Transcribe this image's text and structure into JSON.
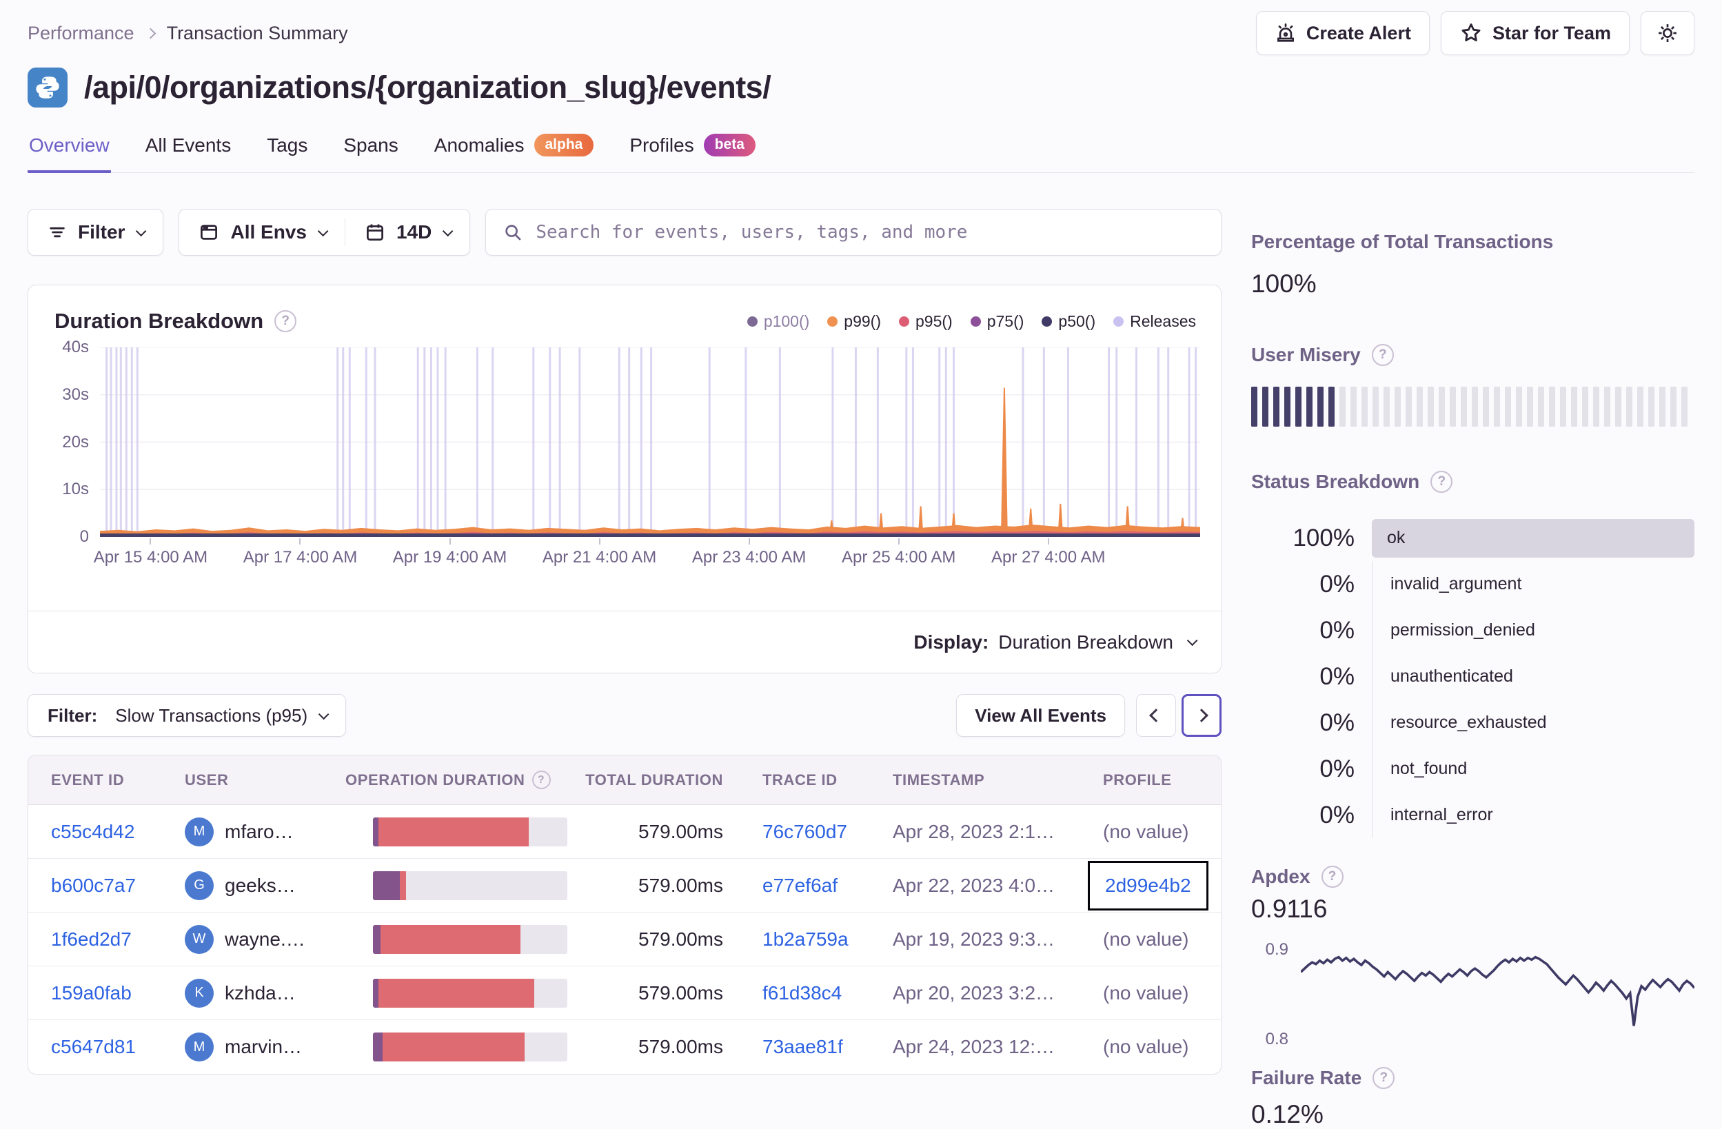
{
  "breadcrumb": {
    "section": "Performance",
    "page": "Transaction Summary"
  },
  "header": {
    "title": "/api/0/organizations/{organization_slug}/events/",
    "platform": "python",
    "actions": {
      "create_alert": "Create Alert",
      "star_for_team": "Star for Team"
    }
  },
  "tabs": [
    {
      "label": "Overview",
      "active": true
    },
    {
      "label": "All Events"
    },
    {
      "label": "Tags"
    },
    {
      "label": "Spans"
    },
    {
      "label": "Anomalies",
      "badge": "alpha"
    },
    {
      "label": "Profiles",
      "badge": "beta"
    }
  ],
  "filters": {
    "filter_button": "Filter",
    "env_button": "All Envs",
    "date_button": "14D",
    "search_placeholder": "Search for events, users, tags, and more"
  },
  "duration_panel": {
    "title": "Duration Breakdown",
    "legend": [
      {
        "label": "p100()",
        "color": "#7C6A94",
        "muted": true
      },
      {
        "label": "p99()",
        "color": "#EF9150"
      },
      {
        "label": "p95()",
        "color": "#DD5E74"
      },
      {
        "label": "p75()",
        "color": "#8D4F99"
      },
      {
        "label": "p50()",
        "color": "#3F3A66"
      },
      {
        "label": "Releases",
        "color": "#C9C1EF"
      }
    ],
    "display_label": "Display:",
    "display_value": "Duration Breakdown",
    "chart_data": {
      "type": "area",
      "unit": "seconds",
      "ylim": [
        0,
        40
      ],
      "y_ticks": [
        {
          "label": "40s",
          "sec": 40
        },
        {
          "label": "30s",
          "sec": 30
        },
        {
          "label": "20s",
          "sec": 20
        },
        {
          "label": "10s",
          "sec": 10
        },
        {
          "label": "0",
          "sec": 0
        }
      ],
      "x_ticks": [
        {
          "label": "Apr 15 4:00 AM",
          "pct": 4.6
        },
        {
          "label": "Apr 17 4:00 AM",
          "pct": 18.2
        },
        {
          "label": "Apr 19 4:00 AM",
          "pct": 31.8
        },
        {
          "label": "Apr 21 4:00 AM",
          "pct": 45.4
        },
        {
          "label": "Apr 23 4:00 AM",
          "pct": 59.0
        },
        {
          "label": "Apr 25 4:00 AM",
          "pct": 72.6
        },
        {
          "label": "Apr 27 4:00 AM",
          "pct": 86.2
        }
      ],
      "release_lines_pct": [
        0.6,
        1.0,
        1.5,
        1.9,
        2.4,
        2.9,
        3.4,
        21.6,
        22.1,
        22.7,
        24.2,
        25.0,
        28.9,
        29.5,
        30.1,
        30.7,
        31.4,
        34.3,
        35.7,
        39.4,
        40.9,
        41.8,
        43.6,
        47.2,
        48.1,
        49.2,
        50.1,
        55.4,
        58.7,
        61.8,
        66.6,
        68.7,
        70.7,
        73.3,
        73.9,
        76.3,
        76.9,
        77.6,
        83.9,
        85.8,
        88.0,
        91.7,
        92.4,
        94.2,
        96.2,
        97.1,
        99.0,
        99.6
      ],
      "p99_spikes_sec": [
        {
          "pct": 66.5,
          "sec": 3.5
        },
        {
          "pct": 71.0,
          "sec": 5.0
        },
        {
          "pct": 74.6,
          "sec": 6.5
        },
        {
          "pct": 77.6,
          "sec": 5.0
        },
        {
          "pct": 82.2,
          "sec": 31.5
        },
        {
          "pct": 84.6,
          "sec": 6.0
        },
        {
          "pct": 87.3,
          "sec": 7.0
        },
        {
          "pct": 93.4,
          "sec": 6.5
        },
        {
          "pct": 98.4,
          "sec": 4.0
        }
      ],
      "p99_baseline_sec": [
        1.3,
        1.5,
        1.2,
        1.6,
        1.4,
        1.8,
        1.3,
        1.5,
        2.0,
        1.4,
        1.6,
        1.3,
        1.7,
        1.5,
        1.9,
        1.6,
        1.4,
        1.8,
        1.5,
        1.7,
        2.1,
        1.6,
        1.8,
        1.5,
        1.9,
        1.7,
        1.5,
        2.0,
        1.6,
        1.8,
        1.4,
        1.7,
        1.9,
        1.6,
        2.0,
        1.7,
        2.1,
        1.8,
        1.6,
        2.2,
        1.9,
        2.4,
        2.0,
        2.3,
        1.9,
        2.2,
        2.5,
        2.1,
        2.4,
        2.2,
        2.6,
        2.3,
        2.0,
        2.4,
        2.1,
        2.5,
        2.2,
        2.0,
        2.3,
        2.1
      ]
    }
  },
  "events_panel": {
    "filter_label": "Filter:",
    "filter_value": "Slow Transactions (p95)",
    "view_all": "View All Events",
    "columns": {
      "event_id": "EVENT ID",
      "user": "USER",
      "op_duration": "OPERATION DURATION",
      "total": "TOTAL DURATION",
      "trace": "TRACE ID",
      "timestamp": "TIMESTAMP",
      "profile": "PROFILE"
    },
    "rows": [
      {
        "event_id": "c55c4d42",
        "avatar": "M",
        "user": "mfaro…",
        "op": {
          "purple": 3,
          "red": 77,
          "track": 20
        },
        "total": "579.00ms",
        "trace": "76c760d7",
        "timestamp": "Apr 28, 2023 2:1…",
        "profile": "(no value)",
        "profile_is_link": false,
        "profile_focused": false
      },
      {
        "event_id": "b600c7a7",
        "avatar": "G",
        "user": "geeks…",
        "op": {
          "purple": 14,
          "red": 3,
          "track": 83
        },
        "total": "579.00ms",
        "trace": "e77ef6af",
        "timestamp": "Apr 22, 2023 4:0…",
        "profile": "2d99e4b2",
        "profile_is_link": true,
        "profile_focused": true
      },
      {
        "event_id": "1f6ed2d7",
        "avatar": "W",
        "user": "wayne.…",
        "op": {
          "purple": 4,
          "red": 72,
          "track": 24
        },
        "total": "579.00ms",
        "trace": "1b2a759a",
        "timestamp": "Apr 19, 2023 9:3…",
        "profile": "(no value)",
        "profile_is_link": false,
        "profile_focused": false
      },
      {
        "event_id": "159a0fab",
        "avatar": "K",
        "user": "kzhda…",
        "op": {
          "purple": 3,
          "red": 80,
          "track": 17
        },
        "total": "579.00ms",
        "trace": "f61d38c4",
        "timestamp": "Apr 20, 2023 3:2…",
        "profile": "(no value)",
        "profile_is_link": false,
        "profile_focused": false
      },
      {
        "event_id": "c5647d81",
        "avatar": "M",
        "user": "marvin…",
        "op": {
          "purple": 5,
          "red": 73,
          "track": 22
        },
        "total": "579.00ms",
        "trace": "73aae81f",
        "timestamp": "Apr 24, 2023 12:…",
        "profile": "(no value)",
        "profile_is_link": false,
        "profile_focused": false
      }
    ]
  },
  "sidebar": {
    "total_transactions": {
      "title": "Percentage of Total Transactions",
      "value": "100%"
    },
    "user_misery": {
      "title": "User Misery",
      "total_bars": 40,
      "filled_bars": 8
    },
    "status_breakdown": {
      "title": "Status Breakdown",
      "rows": [
        {
          "pct": "100%",
          "label": "ok",
          "bar": true
        },
        {
          "pct": "0%",
          "label": "invalid_argument"
        },
        {
          "pct": "0%",
          "label": "permission_denied"
        },
        {
          "pct": "0%",
          "label": "unauthenticated"
        },
        {
          "pct": "0%",
          "label": "resource_exhausted"
        },
        {
          "pct": "0%",
          "label": "not_found"
        },
        {
          "pct": "0%",
          "label": "internal_error"
        }
      ]
    },
    "apdex": {
      "title": "Apdex",
      "value": "0.9116",
      "y_top_label": "0.9",
      "y_bottom_label": "0.8",
      "chart_data": {
        "type": "line",
        "ylim": [
          0.795,
          0.92
        ],
        "values": [
          0.876,
          0.88,
          0.884,
          0.887,
          0.885,
          0.889,
          0.886,
          0.89,
          0.887,
          0.891,
          0.893,
          0.889,
          0.892,
          0.888,
          0.891,
          0.887,
          0.884,
          0.889,
          0.886,
          0.882,
          0.879,
          0.875,
          0.871,
          0.876,
          0.872,
          0.868,
          0.873,
          0.877,
          0.874,
          0.87,
          0.866,
          0.871,
          0.875,
          0.872,
          0.876,
          0.873,
          0.869,
          0.865,
          0.87,
          0.874,
          0.871,
          0.875,
          0.879,
          0.876,
          0.872,
          0.877,
          0.88,
          0.877,
          0.873,
          0.87,
          0.874,
          0.878,
          0.883,
          0.887,
          0.89,
          0.887,
          0.891,
          0.888,
          0.892,
          0.889,
          0.892,
          0.89,
          0.893,
          0.891,
          0.888,
          0.885,
          0.88,
          0.875,
          0.87,
          0.866,
          0.862,
          0.867,
          0.872,
          0.868,
          0.863,
          0.858,
          0.853,
          0.858,
          0.864,
          0.86,
          0.855,
          0.861,
          0.866,
          0.862,
          0.857,
          0.852,
          0.846,
          0.852,
          0.815,
          0.848,
          0.86,
          0.856,
          0.862,
          0.867,
          0.863,
          0.859,
          0.864,
          0.868,
          0.865,
          0.86,
          0.855,
          0.862,
          0.866,
          0.863,
          0.858
        ]
      }
    },
    "failure_rate": {
      "title": "Failure Rate",
      "value": "0.12%"
    }
  },
  "colors": {
    "accent": "#6C5FC7",
    "link": "#2D62E2",
    "release_line": "#CFC8EE",
    "p99_area": "#EE8A49",
    "p95_area": "#DB6077",
    "p50_line": "#454069",
    "grid": "#F1EEF4",
    "bar_red": "#DE6B71",
    "bar_purple": "#83548C",
    "bar_track": "#E9E6EE",
    "misery_filled": "#454069",
    "misery_empty": "#E4E2E9",
    "avatar_blue": "#4A79CF",
    "spark_line": "#3E3A66",
    "alpha_badge": [
      "#F0965C",
      "#E8693F"
    ],
    "beta_badge": [
      "#A03CB2",
      "#DD5A7E"
    ]
  }
}
